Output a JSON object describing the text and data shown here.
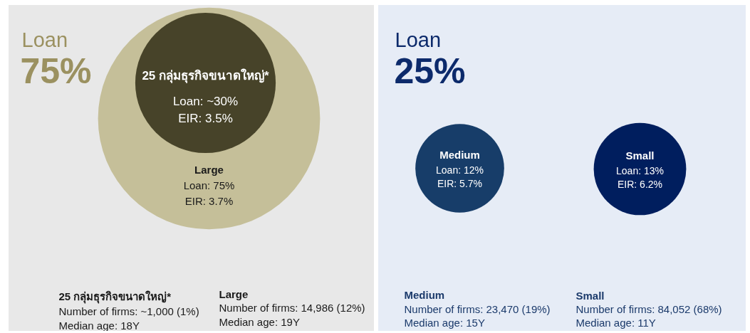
{
  "chart_data": [
    {
      "type": "other",
      "title": "Loan",
      "subtitle": "75%",
      "categories": [
        "25 กลุ่มธุรกิจขนาดใหญ่*",
        "Large"
      ],
      "colors": [
        "#474329",
        "#c5bf99"
      ],
      "values": [
        30,
        75
      ],
      "value_labels": [
        "Loan: ~30%",
        "Loan: 75%"
      ],
      "annotations": [
        "EIR: 3.5%",
        "EIR: 3.7%",
        "Number of firms: ~1,000 (1%)",
        "Number of firms: 14,986 (12%)",
        "Median age: 18Y",
        "Median age: 19Y"
      ]
    },
    {
      "type": "other",
      "title": "Loan",
      "subtitle": "25%",
      "categories": [
        "Medium",
        "Small"
      ],
      "colors": [
        "#173d69",
        "#001e5e"
      ],
      "values": [
        12,
        13
      ],
      "value_labels": [
        "Loan: 12%",
        "Loan: 13%"
      ],
      "annotations": [
        "EIR: 5.7%",
        "EIR: 6.2%",
        "Number of firms: 23,470 (19%)",
        "Number of firms: 84,052 (68%)",
        "Median age: 15Y",
        "Median age: 11Y"
      ]
    }
  ]
}
